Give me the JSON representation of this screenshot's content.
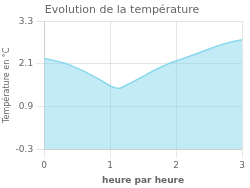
{
  "chart_data": {
    "type": "area",
    "title": "Evolution de la température",
    "xlabel": "heure par heure",
    "ylabel": "Température en °C",
    "x": [
      0,
      0.15,
      0.35,
      0.6,
      0.85,
      1.0,
      1.1,
      1.15,
      1.3,
      1.5,
      1.7,
      1.9,
      2.1,
      2.3,
      2.5,
      2.7,
      2.85,
      3.0
    ],
    "values": [
      2.25,
      2.2,
      2.1,
      1.9,
      1.65,
      1.48,
      1.42,
      1.42,
      1.55,
      1.75,
      1.95,
      2.12,
      2.25,
      2.38,
      2.52,
      2.65,
      2.72,
      2.78
    ],
    "color": "#88d8ee",
    "xlim": [
      0,
      3
    ],
    "ylim": [
      -0.3,
      3.3
    ],
    "xticks": [
      0,
      1,
      2,
      3
    ],
    "yticks": [
      -0.3,
      0.9,
      2.1,
      3.3
    ],
    "grid": true
  }
}
